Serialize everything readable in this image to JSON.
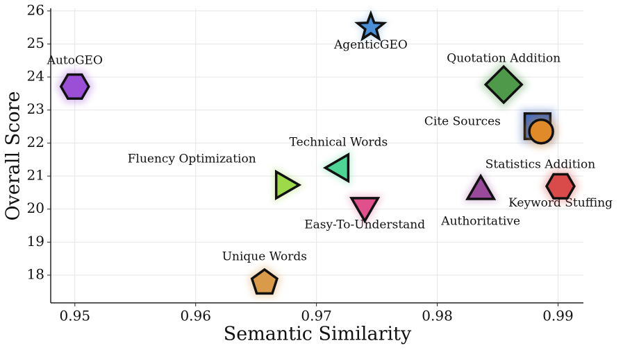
{
  "chart_data": {
    "type": "scatter",
    "x_label": "Semantic Similarity",
    "y_label": "Overall Score",
    "xlim": [
      0.948,
      0.9921
    ],
    "ylim": [
      17.16,
      26.08
    ],
    "xticks": [
      0.95,
      0.96,
      0.97,
      0.98,
      0.99
    ],
    "yticks": [
      18,
      19,
      20,
      21,
      22,
      23,
      24,
      25,
      26
    ],
    "grid": true,
    "series": [
      {
        "name": "AgenticGEO",
        "color": "#4a8fd8",
        "marker": "star",
        "x": [
          0.9745
        ],
        "values": [
          25.5
        ]
      },
      {
        "name": "AutoGEO",
        "color": "#9b4fd6",
        "marker": "hexagon",
        "x": [
          0.95
        ],
        "values": [
          23.71
        ]
      },
      {
        "name": "Quotation Addition",
        "color": "#4e9a4a",
        "marker": "diamond",
        "x": [
          0.9855
        ],
        "values": [
          23.77
        ]
      },
      {
        "name": "Cite Sources",
        "color": "#3c6cc8",
        "marker": "square",
        "x": [
          0.9883
        ],
        "values": [
          22.51
        ]
      },
      {
        "name": "Keyword Stuffing",
        "color": "#e08a2a",
        "marker": "circle",
        "x": [
          0.9886
        ],
        "values": [
          22.35
        ]
      },
      {
        "name": "Statistics Addition",
        "color": "#d94a4a",
        "marker": "hexagon",
        "x": [
          0.9902
        ],
        "values": [
          20.69
        ]
      },
      {
        "name": "Fluency Optimization",
        "color": "#9ed94a",
        "marker": "triangle-right",
        "x": [
          0.9673
        ],
        "values": [
          20.73
        ]
      },
      {
        "name": "Technical Words",
        "color": "#4ed494",
        "marker": "triangle-left",
        "x": [
          0.972
        ],
        "values": [
          21.25
        ]
      },
      {
        "name": "Easy-To-Understand",
        "color": "#e0508a",
        "marker": "triangle-down",
        "x": [
          0.974
        ],
        "values": [
          20.1
        ]
      },
      {
        "name": "Authoritative",
        "color": "#9a4a9a",
        "marker": "triangle-up",
        "x": [
          0.9836
        ],
        "values": [
          20.54
        ]
      },
      {
        "name": "Unique Words",
        "color": "#d99a4a",
        "marker": "pentagon",
        "x": [
          0.9657
        ],
        "values": [
          17.77
        ]
      }
    ]
  }
}
